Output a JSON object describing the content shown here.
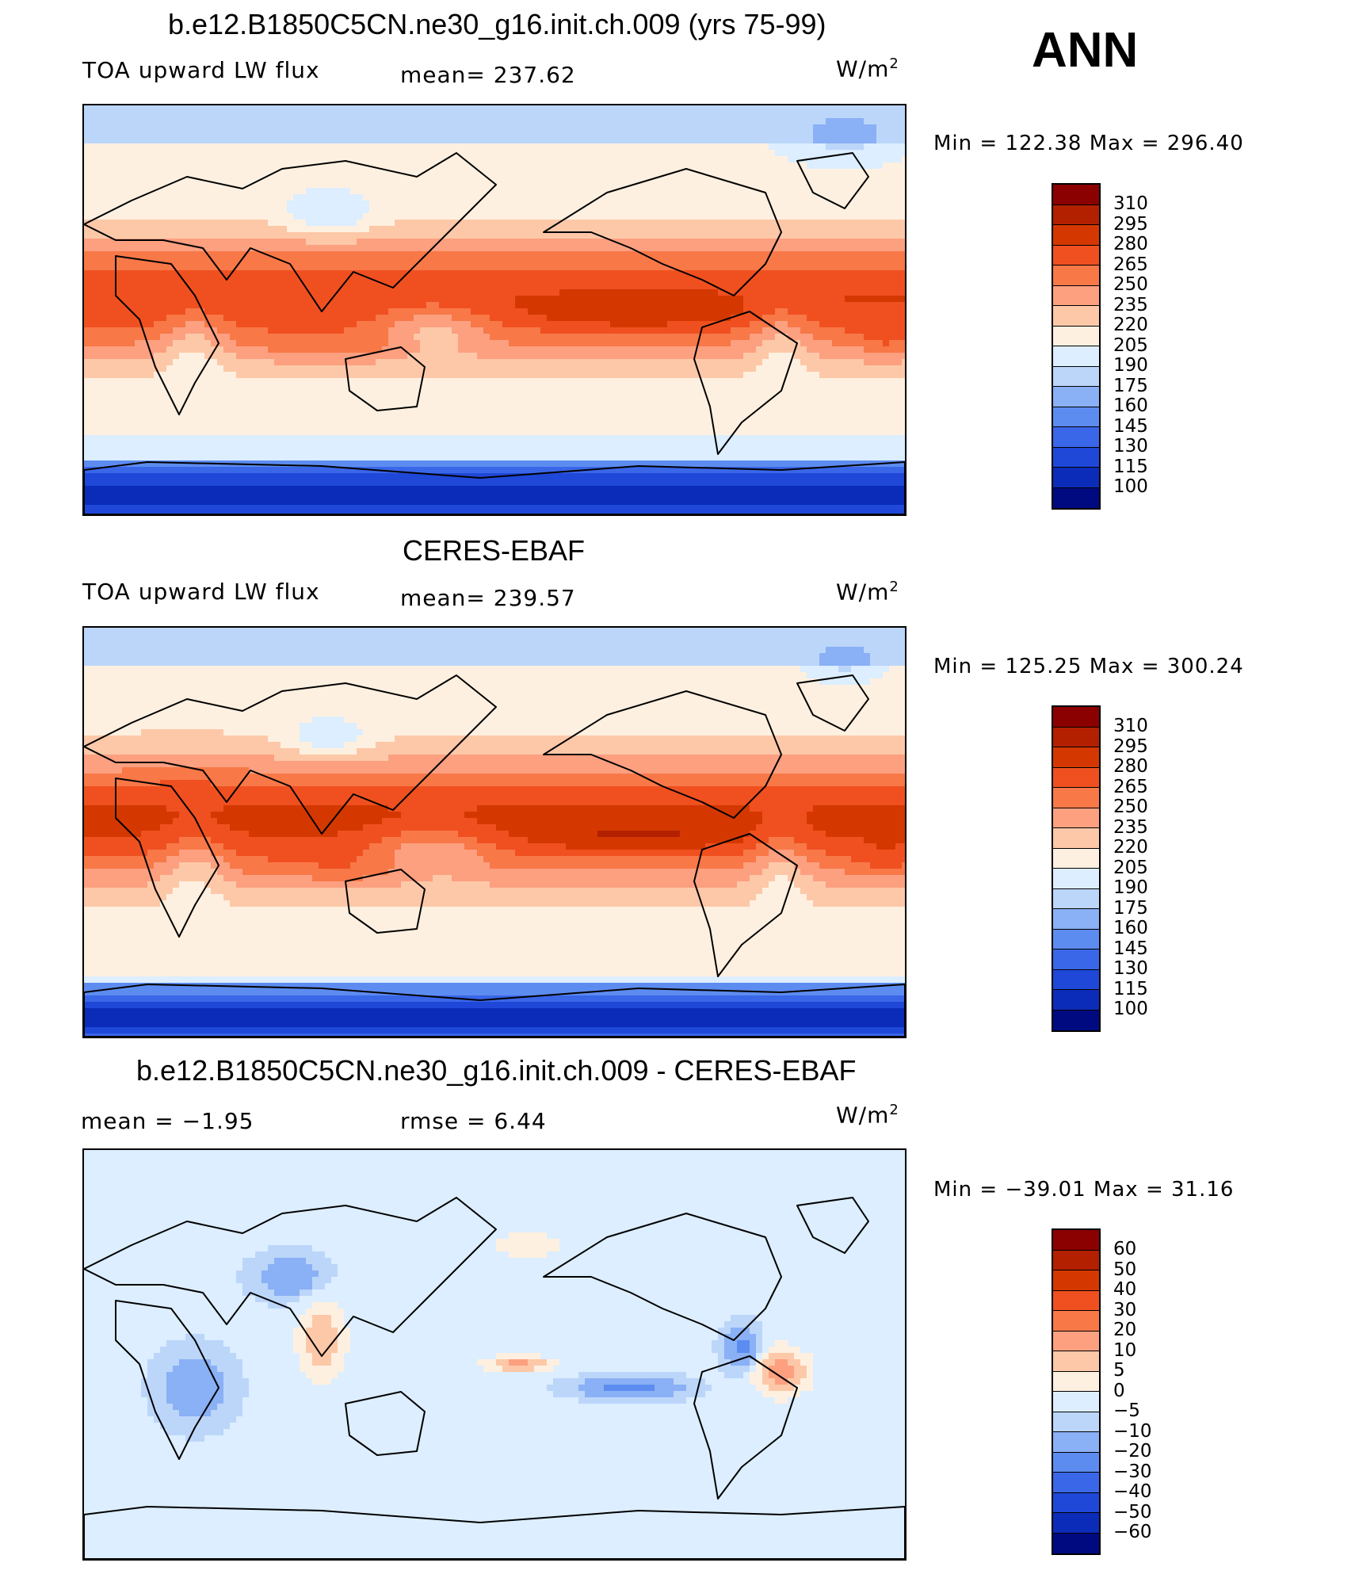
{
  "season": "ANN",
  "palette": {
    "absolute": [
      "#8b0000",
      "#b22000",
      "#d43800",
      "#f05020",
      "#f87848",
      "#fca080",
      "#fdc8a8",
      "#fef0e0",
      "#dceeff",
      "#bcd6fa",
      "#8ab0f5",
      "#5d8cf0",
      "#3a66e8",
      "#1f48d8",
      "#0a2cb8",
      "#000a80"
    ],
    "difference": [
      "#8b0000",
      "#b22000",
      "#d43800",
      "#f05020",
      "#f87848",
      "#fca080",
      "#fdc8a8",
      "#fef0e0",
      "#dceeff",
      "#bcd6fa",
      "#8ab0f5",
      "#5d8cf0",
      "#3a66e8",
      "#1f48d8",
      "#0a2cb8",
      "#000a80"
    ]
  },
  "panels": [
    {
      "title": "b.e12.B1850C5CN.ne30_g16.init.ch.009 (yrs 75-99)",
      "left_label": "TOA upward LW flux",
      "center_label": "mean= 237.62",
      "units": "W/m",
      "units_sup": "2",
      "minmax": "Min  =  122.38  Max  =  296.40",
      "levels": [
        "310",
        "295",
        "280",
        "265",
        "250",
        "235",
        "220",
        "205",
        "190",
        "175",
        "160",
        "145",
        "130",
        "115",
        "100"
      ],
      "field": "model"
    },
    {
      "title": "CERES-EBAF",
      "left_label": "TOA upward LW flux",
      "center_label": "mean= 239.57",
      "units": "W/m",
      "units_sup": "2",
      "minmax": "Min  =  125.25  Max  =  300.24",
      "levels": [
        "310",
        "295",
        "280",
        "265",
        "250",
        "235",
        "220",
        "205",
        "190",
        "175",
        "160",
        "145",
        "130",
        "115",
        "100"
      ],
      "field": "obs"
    },
    {
      "title": "b.e12.B1850C5CN.ne30_g16.init.ch.009 - CERES-EBAF",
      "left_label": "mean =    −1.95",
      "center_label": "rmse =      6.44",
      "units": "W/m",
      "units_sup": "2",
      "minmax": "Min  =  −39.01  Max  =    31.16",
      "levels": [
        "60",
        "50",
        "40",
        "30",
        "20",
        "10",
        "5",
        "0",
        "−5",
        "−10",
        "−20",
        "−30",
        "−40",
        "−50",
        "−60"
      ],
      "field": "diff"
    }
  ]
}
